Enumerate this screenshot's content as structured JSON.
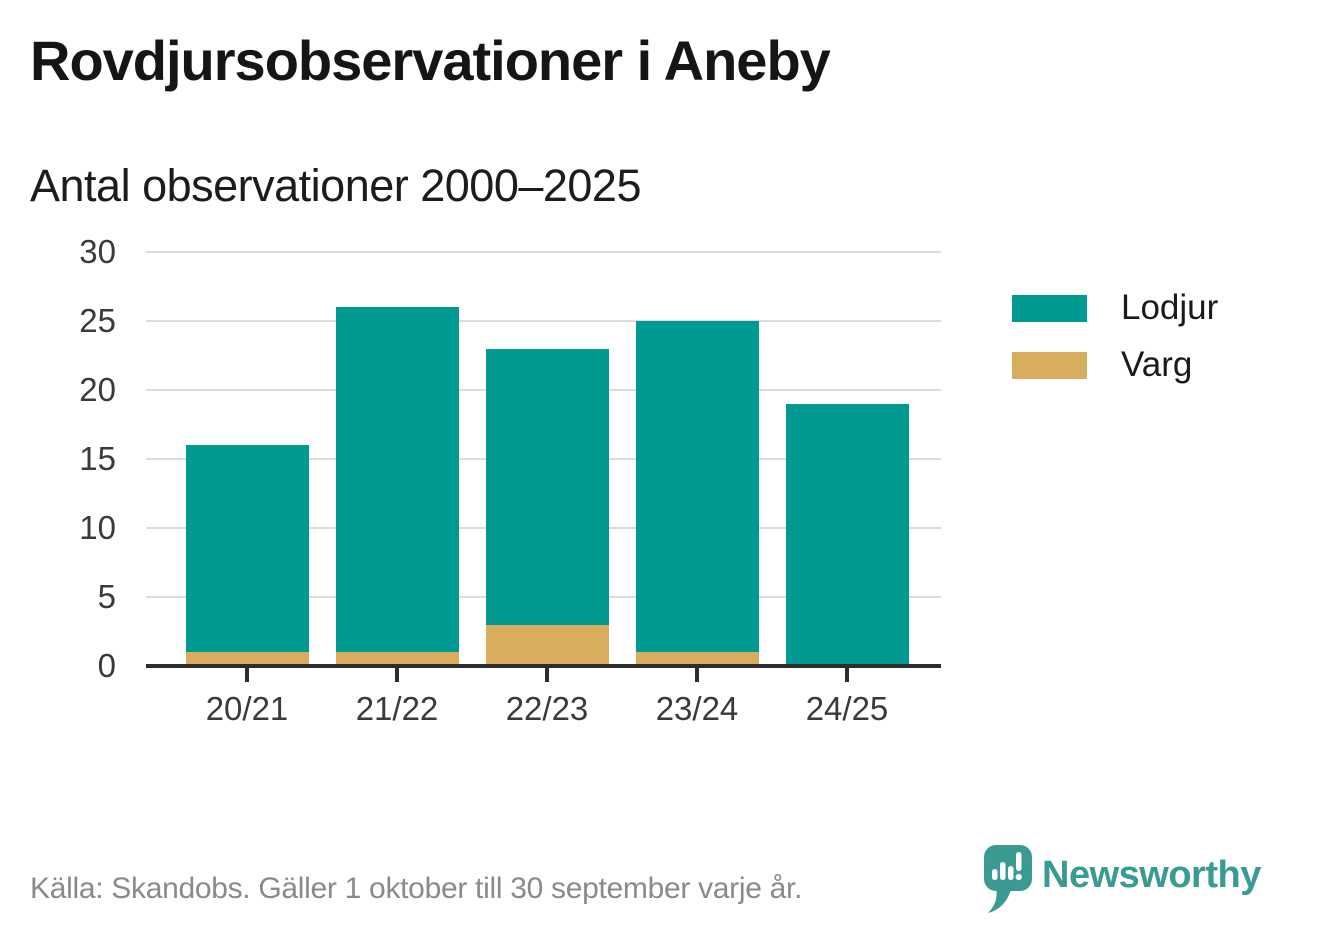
{
  "header": {
    "title": "Rovdjursobservationer i Aneby",
    "subtitle": "Antal observationer 2000–2025"
  },
  "chart_data": {
    "type": "bar",
    "stacked": true,
    "title": "Rovdjursobservationer i Aneby",
    "subtitle": "Antal observationer 2000–2025",
    "categories": [
      "20/21",
      "21/22",
      "22/23",
      "23/24",
      "24/25"
    ],
    "series": [
      {
        "name": "Lodjur",
        "color": "#009a93",
        "values": [
          15,
          25,
          20,
          24,
          19
        ]
      },
      {
        "name": "Varg",
        "color": "#d9ad5e",
        "values": [
          1,
          1,
          3,
          1,
          0
        ]
      }
    ],
    "totals": [
      16,
      26,
      23,
      25,
      19
    ],
    "xlabel": "",
    "ylabel": "",
    "ylim": [
      0,
      30
    ],
    "yticks": [
      0,
      5,
      10,
      15,
      20,
      25,
      30
    ],
    "grid": "horizontal",
    "legend_position": "right"
  },
  "colors": {
    "grid": "#dcdcdc",
    "axis": "#2d2d2d",
    "axis_text": "#3a3a3a",
    "title_text": "#151515",
    "source_text": "#8a8a8a",
    "brand_teal": "#3a9b93"
  },
  "footer": {
    "source": "Källa: Skandobs. Gäller 1 oktober till 30 september varje år.",
    "brand": "Newsworthy"
  }
}
